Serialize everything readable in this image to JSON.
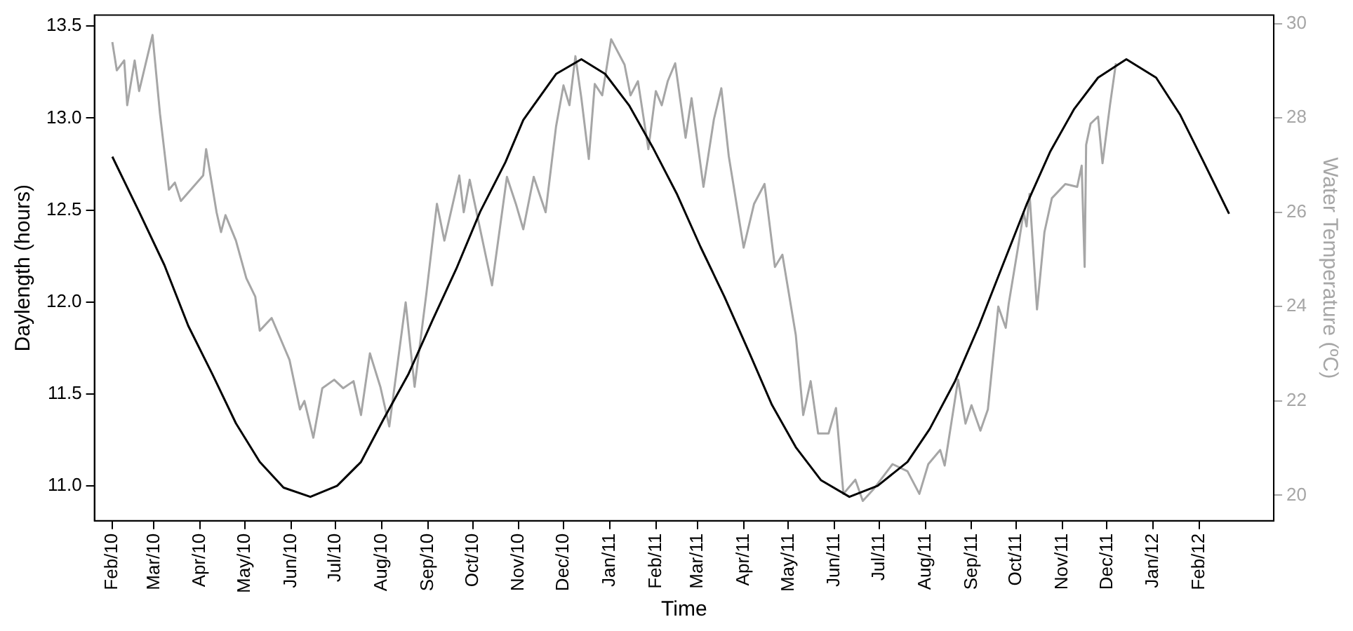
{
  "chart_data": {
    "type": "line",
    "xlabel": "Time",
    "ylabel": "Daylength (hours)",
    "y2label": "Water Temperature (ºC)",
    "xlim": [
      "2010-01-20",
      "2012-03-22"
    ],
    "xticks": [
      {
        "value": "2010-02-01",
        "label": "Feb/10"
      },
      {
        "value": "2010-03-01",
        "label": "Mar/10"
      },
      {
        "value": "2010-04-01",
        "label": "Apr/10"
      },
      {
        "value": "2010-05-01",
        "label": "May/10"
      },
      {
        "value": "2010-06-01",
        "label": "Jun/10"
      },
      {
        "value": "2010-07-01",
        "label": "Jul/10"
      },
      {
        "value": "2010-08-01",
        "label": "Aug/10"
      },
      {
        "value": "2010-09-01",
        "label": "Sep/10"
      },
      {
        "value": "2010-10-01",
        "label": "Oct/10"
      },
      {
        "value": "2010-11-01",
        "label": "Nov/10"
      },
      {
        "value": "2010-12-01",
        "label": "Dec/10"
      },
      {
        "value": "2011-01-01",
        "label": "Jan/11"
      },
      {
        "value": "2011-02-01",
        "label": "Feb/11"
      },
      {
        "value": "2011-03-01",
        "label": "Mar/11"
      },
      {
        "value": "2011-04-01",
        "label": "Apr/11"
      },
      {
        "value": "2011-05-01",
        "label": "May/11"
      },
      {
        "value": "2011-06-01",
        "label": "Jun/11"
      },
      {
        "value": "2011-07-01",
        "label": "Jul/11"
      },
      {
        "value": "2011-08-01",
        "label": "Aug/11"
      },
      {
        "value": "2011-09-01",
        "label": "Sep/11"
      },
      {
        "value": "2011-10-01",
        "label": "Oct/11"
      },
      {
        "value": "2011-11-01",
        "label": "Nov/11"
      },
      {
        "value": "2011-12-01",
        "label": "Dec/11"
      },
      {
        "value": "2012-01-01",
        "label": "Jan/12"
      },
      {
        "value": "2012-02-01",
        "label": "Feb/12"
      }
    ],
    "ylim": [
      10.81,
      13.56
    ],
    "yticks": [
      {
        "value": 11,
        "label": "11.0"
      },
      {
        "value": 11.5,
        "label": "11.5"
      },
      {
        "value": 12,
        "label": "12.0"
      },
      {
        "value": 12.5,
        "label": "12.5"
      },
      {
        "value": 13,
        "label": "13.0"
      },
      {
        "value": 13.5,
        "label": "13.5"
      }
    ],
    "y2lim": [
      19.46,
      30.18
    ],
    "y2ticks": [
      20,
      22,
      24,
      26,
      28,
      30
    ],
    "grid": false,
    "legend": false,
    "marker": "none",
    "line_style": "solid",
    "series": [
      {
        "color": "#000000",
        "x": [
          "2010-02-01",
          "2010-02-19",
          "2010-03-08",
          "2010-03-24",
          "2010-04-09",
          "2010-04-25",
          "2010-05-11",
          "2010-05-27",
          "2010-06-14",
          "2010-07-02",
          "2010-07-18",
          "2010-08-02",
          "2010-08-19",
          "2010-09-04",
          "2010-09-20",
          "2010-10-06",
          "2010-10-23",
          "2010-11-04",
          "2010-11-11",
          "2010-11-26",
          "2010-12-13",
          "2010-12-29",
          "2011-01-14",
          "2011-01-30",
          "2011-02-15",
          "2011-03-03",
          "2011-03-19",
          "2011-04-05",
          "2011-04-20",
          "2011-05-06",
          "2011-05-23",
          "2011-06-11",
          "2011-06-30",
          "2011-07-20",
          "2011-08-04",
          "2011-08-21",
          "2011-09-06",
          "2011-09-21",
          "2011-10-08",
          "2011-10-24",
          "2011-11-09",
          "2011-11-25",
          "2011-12-14",
          "2012-01-03",
          "2012-01-19",
          "2012-02-04",
          "2012-02-21"
        ],
        "values": [
          12.79,
          12.49,
          12.2,
          11.87,
          11.61,
          11.34,
          11.13,
          10.99,
          10.94,
          11.0,
          11.13,
          11.36,
          11.61,
          11.9,
          12.18,
          12.49,
          12.76,
          12.99,
          13.07,
          13.24,
          13.32,
          13.24,
          13.07,
          12.84,
          12.59,
          12.3,
          12.03,
          11.72,
          11.44,
          11.21,
          11.03,
          10.94,
          11.0,
          11.13,
          11.31,
          11.57,
          11.87,
          12.18,
          12.53,
          12.82,
          13.05,
          13.22,
          13.32,
          13.22,
          13.02,
          12.76,
          12.48
        ]
      },
      {
        "color": "#a6a6a6",
        "axis": "y2",
        "x": [
          "2010-02-01",
          "2010-02-04",
          "2010-02-09",
          "2010-02-11",
          "2010-02-16",
          "2010-02-19",
          "2010-02-28",
          "2010-03-05",
          "2010-03-11",
          "2010-03-15",
          "2010-03-19",
          "2010-04-03",
          "2010-04-05",
          "2010-04-12",
          "2010-04-15",
          "2010-04-18",
          "2010-04-25",
          "2010-05-02",
          "2010-05-08",
          "2010-05-11",
          "2010-05-19",
          "2010-05-31",
          "2010-06-07",
          "2010-06-10",
          "2010-06-16",
          "2010-06-22",
          "2010-06-30",
          "2010-07-06",
          "2010-07-13",
          "2010-07-18",
          "2010-07-24",
          "2010-07-31",
          "2010-08-06",
          "2010-08-17",
          "2010-08-23",
          "2010-08-31",
          "2010-09-07",
          "2010-09-12",
          "2010-09-22",
          "2010-09-25",
          "2010-09-29",
          "2010-10-14",
          "2010-10-24",
          "2010-10-30",
          "2010-11-04",
          "2010-11-11",
          "2010-11-19",
          "2010-11-26",
          "2010-12-01",
          "2010-12-05",
          "2010-12-09",
          "2010-12-13",
          "2010-12-18",
          "2010-12-22",
          "2010-12-27",
          "2011-01-02",
          "2011-01-11",
          "2011-01-15",
          "2011-01-20",
          "2011-01-27",
          "2011-02-01",
          "2011-02-05",
          "2011-02-09",
          "2011-02-14",
          "2011-02-21",
          "2011-02-25",
          "2011-03-05",
          "2011-03-12",
          "2011-03-17",
          "2011-03-22",
          "2011-04-01",
          "2011-04-08",
          "2011-04-15",
          "2011-04-22",
          "2011-04-27",
          "2011-05-06",
          "2011-05-11",
          "2011-05-16",
          "2011-05-21",
          "2011-05-28",
          "2011-06-02",
          "2011-06-07",
          "2011-06-15",
          "2011-06-20",
          "2011-06-27",
          "2011-07-10",
          "2011-07-20",
          "2011-07-28",
          "2011-08-03",
          "2011-08-11",
          "2011-08-14",
          "2011-08-23",
          "2011-08-28",
          "2011-09-01",
          "2011-09-07",
          "2011-09-12",
          "2011-09-19",
          "2011-09-24",
          "2011-09-26",
          "2011-10-03",
          "2011-10-06",
          "2011-10-08",
          "2011-10-10",
          "2011-10-15",
          "2011-10-20",
          "2011-10-25",
          "2011-11-03",
          "2011-11-11",
          "2011-11-14",
          "2011-11-16",
          "2011-11-17",
          "2011-11-20",
          "2011-11-25",
          "2011-11-28",
          "2011-12-03",
          "2011-12-07"
        ],
        "values": [
          29.61,
          29.01,
          29.22,
          28.27,
          29.22,
          28.57,
          29.76,
          28.09,
          26.48,
          26.63,
          26.24,
          26.78,
          27.34,
          26.0,
          25.58,
          25.94,
          25.4,
          24.6,
          24.21,
          23.49,
          23.76,
          22.87,
          21.82,
          22.0,
          21.22,
          22.27,
          22.45,
          22.27,
          22.42,
          21.7,
          23.01,
          22.3,
          21.46,
          24.09,
          22.3,
          24.3,
          26.18,
          25.4,
          26.78,
          26.0,
          26.69,
          24.45,
          26.75,
          26.18,
          25.64,
          26.75,
          26.0,
          27.82,
          28.69,
          28.27,
          29.31,
          28.42,
          27.13,
          28.72,
          28.48,
          29.67,
          29.13,
          28.48,
          28.78,
          27.34,
          28.57,
          28.27,
          28.78,
          29.16,
          27.58,
          28.42,
          26.54,
          27.97,
          28.63,
          27.19,
          25.25,
          26.18,
          26.6,
          24.84,
          25.1,
          23.4,
          21.7,
          22.42,
          21.31,
          21.31,
          21.85,
          20.03,
          20.33,
          19.88,
          20.12,
          20.66,
          20.51,
          20.03,
          20.66,
          20.96,
          20.63,
          22.45,
          21.52,
          21.91,
          21.37,
          21.82,
          24.0,
          23.55,
          24.06,
          25.4,
          26.0,
          25.7,
          26.39,
          23.94,
          25.58,
          26.3,
          26.6,
          26.54,
          26.99,
          24.84,
          27.43,
          27.88,
          28.03,
          27.04,
          28.27,
          29.16
        ]
      }
    ]
  }
}
